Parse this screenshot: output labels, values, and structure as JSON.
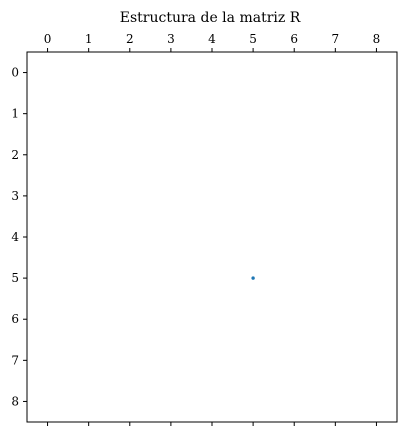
{
  "chart_data": {
    "type": "scatter",
    "title": "Estructura de la matriz R",
    "x_ticks": [
      "0",
      "1",
      "2",
      "3",
      "4",
      "5",
      "6",
      "7",
      "8"
    ],
    "y_ticks": [
      "0",
      "1",
      "2",
      "3",
      "4",
      "5",
      "6",
      "7",
      "8"
    ],
    "xlim": [
      -0.5,
      8.5
    ],
    "ylim": [
      8.5,
      -0.5
    ],
    "y_inverted": true,
    "x_tick_position": "top",
    "grid": false,
    "marker_color": "#1f77b4",
    "points": [
      {
        "x": 5,
        "y": 5
      }
    ]
  }
}
